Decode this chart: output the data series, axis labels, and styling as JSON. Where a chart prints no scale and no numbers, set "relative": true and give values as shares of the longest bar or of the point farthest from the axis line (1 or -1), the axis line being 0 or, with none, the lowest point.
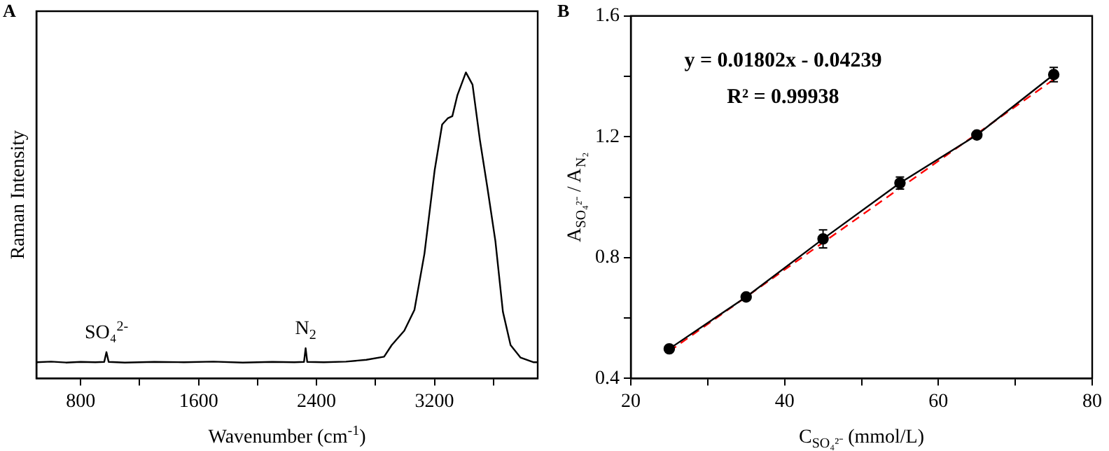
{
  "chart_data": [
    {
      "type": "line",
      "title": "A",
      "xlabel": "Wavenumber (cm$^{-1}$)",
      "ylabel": "Raman Intensity",
      "relative": true,
      "tick_labels": "x",
      "grid": false,
      "legend": false,
      "marker": "none",
      "xlim": [
        500,
        3900
      ],
      "xticks": [
        800,
        {
          "value": 1200,
          "label": null
        },
        1600,
        {
          "value": 2000,
          "label": null
        },
        2400,
        {
          "value": 2800,
          "label": null
        },
        3200,
        {
          "value": 3600,
          "label": null
        }
      ],
      "annotations": [
        {
          "text": "SO₄$^{2-}$",
          "x": 975,
          "y": 0.086
        },
        {
          "text": "N$_{2}$",
          "x": 2326,
          "y": 0.099
        }
      ],
      "series": [
        {
          "color": "#000000",
          "x": [
            500,
            600,
            700,
            800,
            900,
            960,
            975,
            990,
            1100,
            1300,
            1500,
            1700,
            1900,
            2100,
            2250,
            2315,
            2326,
            2337,
            2450,
            2600,
            2738,
            2858,
            2910,
            2995,
            3064,
            3132,
            3201,
            3252,
            3290,
            3321,
            3355,
            3413,
            3458,
            3509,
            3560,
            3613,
            3664,
            3716,
            3784,
            3870,
            3900
          ],
          "values": [
            0.053,
            0.055,
            0.052,
            0.054,
            0.053,
            0.054,
            0.086,
            0.054,
            0.052,
            0.054,
            0.053,
            0.055,
            0.052,
            0.054,
            0.053,
            0.054,
            0.099,
            0.054,
            0.053,
            0.055,
            0.061,
            0.071,
            0.109,
            0.156,
            0.224,
            0.408,
            0.68,
            0.83,
            0.85,
            0.857,
            0.925,
            1.0,
            0.96,
            0.776,
            0.62,
            0.449,
            0.218,
            0.109,
            0.068,
            0.053,
            0.053
          ]
        }
      ]
    },
    {
      "type": "line",
      "title": "B",
      "xlabel": "C$_{SO₄²⁻}$ (mmol/L)",
      "ylabel": "A$_{SO₄²⁻}$ / A$_{N₂}$",
      "grid": false,
      "legend": false,
      "xlim": [
        20,
        80
      ],
      "xticks": [
        20,
        {
          "value": 30,
          "label": null
        },
        40,
        {
          "value": 50,
          "label": null
        },
        60,
        {
          "value": 70,
          "label": null
        },
        80
      ],
      "ylim": [
        0.4,
        1.6
      ],
      "yticks": [
        {
          "value": 0.4,
          "label": "0.4"
        },
        {
          "value": 0.6,
          "label": null
        },
        {
          "value": 0.8,
          "label": "0.8"
        },
        {
          "value": 1.0,
          "label": null
        },
        {
          "value": 1.2,
          "label": "1.2"
        },
        {
          "value": 1.4,
          "label": null
        },
        {
          "value": 1.6,
          "label": "1.6"
        }
      ],
      "annotations": [
        "y = 0.01802x - 0.04239",
        "R² = 0.99938"
      ],
      "series": [
        {
          "color": "#000000",
          "marker": "circle",
          "x": [
            25,
            35,
            45,
            55,
            65,
            75
          ],
          "values": [
            0.498,
            0.67,
            0.862,
            1.047,
            1.206,
            1.406
          ],
          "errors": [
            0.008,
            0.01,
            0.03,
            0.02,
            0.01,
            0.024
          ]
        },
        {
          "color": "#ff0000",
          "marker": "none",
          "line_style": "dashed",
          "x": [
            25,
            75
          ],
          "values": [
            0.49,
            1.39
          ]
        }
      ]
    }
  ]
}
